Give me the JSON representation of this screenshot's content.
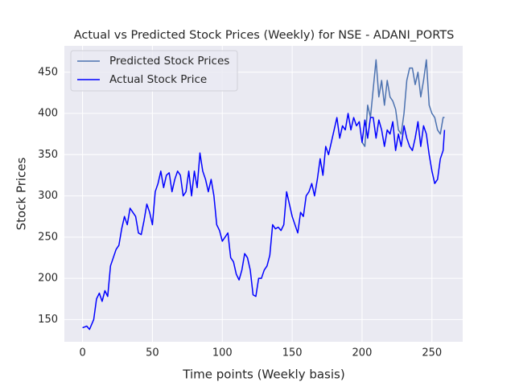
{
  "chart_data": {
    "type": "line",
    "title": "Actual vs Predicted Stock Prices (Weekly) for NSE - ADANI_PORTS",
    "xlabel": "Time points (Weekly basis)",
    "ylabel": "Stock Prices",
    "xlim": [
      -13,
      272
    ],
    "ylim": [
      123,
      482
    ],
    "xticks": [
      0,
      50,
      100,
      150,
      200,
      250
    ],
    "yticks": [
      150,
      200,
      250,
      300,
      350,
      400,
      450
    ],
    "grid": true,
    "legend": "upper left",
    "series": [
      {
        "name": "Predicted Stock Prices",
        "color": "#4c72b0",
        "x": [
          200,
          202,
          204,
          206,
          208,
          210,
          212,
          214,
          216,
          218,
          220,
          222,
          224,
          226,
          228,
          230,
          232,
          234,
          236,
          238,
          240,
          242,
          244,
          246,
          248,
          250,
          252,
          254,
          256,
          258,
          259
        ],
        "values": [
          365,
          360,
          410,
          395,
          430,
          465,
          420,
          440,
          410,
          440,
          420,
          415,
          405,
          380,
          375,
          400,
          440,
          455,
          455,
          435,
          450,
          420,
          440,
          465,
          410,
          400,
          395,
          380,
          375,
          395,
          395
        ]
      },
      {
        "name": "Actual Stock Price",
        "color": "#0000ff",
        "x": [
          0,
          3,
          5,
          8,
          10,
          12,
          14,
          16,
          18,
          20,
          22,
          24,
          26,
          28,
          30,
          32,
          34,
          36,
          38,
          40,
          42,
          44,
          46,
          48,
          50,
          52,
          54,
          56,
          58,
          60,
          62,
          64,
          66,
          68,
          70,
          72,
          74,
          76,
          78,
          80,
          82,
          84,
          86,
          88,
          90,
          92,
          94,
          96,
          98,
          100,
          102,
          104,
          106,
          108,
          110,
          112,
          114,
          116,
          118,
          120,
          122,
          124,
          126,
          128,
          130,
          132,
          134,
          136,
          138,
          140,
          142,
          144,
          146,
          148,
          150,
          152,
          154,
          156,
          158,
          160,
          162,
          164,
          166,
          168,
          170,
          172,
          174,
          176,
          178,
          180,
          182,
          184,
          186,
          188,
          190,
          192,
          194,
          196,
          198,
          200,
          202,
          204,
          206,
          208,
          210,
          212,
          214,
          216,
          218,
          220,
          222,
          224,
          226,
          228,
          230,
          232,
          234,
          236,
          238,
          240,
          242,
          244,
          246,
          248,
          250,
          252,
          254,
          256,
          258,
          259
        ],
        "values": [
          140,
          142,
          138,
          150,
          175,
          182,
          172,
          185,
          178,
          215,
          225,
          235,
          240,
          260,
          275,
          265,
          285,
          280,
          275,
          255,
          253,
          270,
          290,
          280,
          265,
          305,
          315,
          330,
          310,
          325,
          328,
          305,
          320,
          330,
          325,
          300,
          305,
          330,
          300,
          330,
          310,
          352,
          330,
          320,
          305,
          320,
          300,
          265,
          258,
          245,
          250,
          255,
          225,
          220,
          205,
          198,
          210,
          230,
          225,
          210,
          180,
          178,
          200,
          200,
          210,
          215,
          228,
          265,
          260,
          262,
          258,
          265,
          305,
          290,
          275,
          265,
          255,
          280,
          275,
          300,
          305,
          315,
          300,
          320,
          345,
          325,
          360,
          350,
          365,
          380,
          395,
          370,
          385,
          380,
          400,
          380,
          395,
          385,
          390,
          365,
          392,
          370,
          395,
          395,
          370,
          392,
          380,
          360,
          380,
          375,
          390,
          355,
          375,
          360,
          385,
          370,
          360,
          355,
          370,
          390,
          360,
          385,
          375,
          350,
          330,
          315,
          320,
          345,
          355,
          380
        ]
      }
    ]
  }
}
